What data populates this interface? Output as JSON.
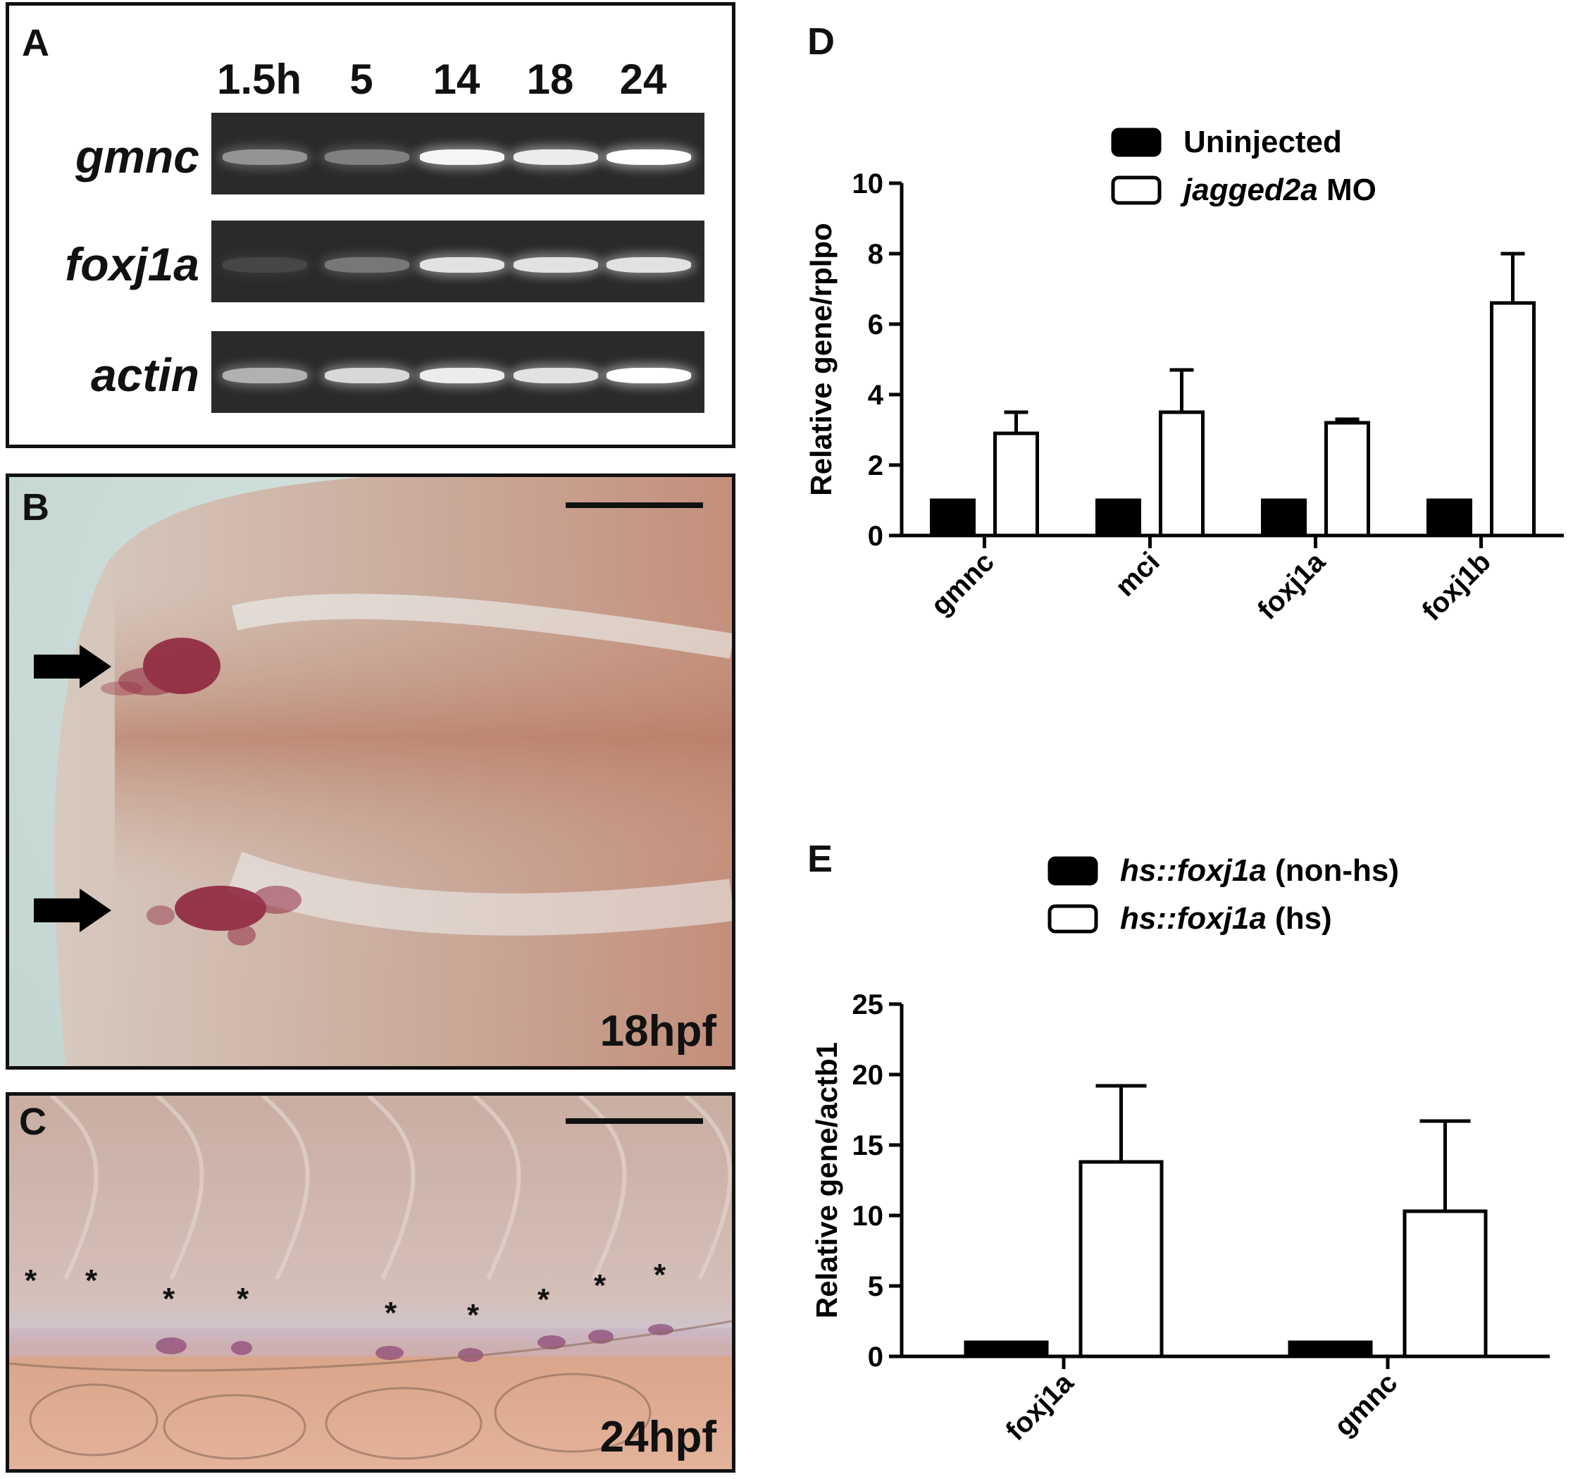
{
  "panel_a": {
    "label": "A",
    "lanes": [
      "1.5h",
      "5",
      "14",
      "18",
      "24"
    ],
    "genes": [
      "gmnc",
      "foxj1a",
      "actin"
    ],
    "band_intensity": [
      [
        0.45,
        0.35,
        0.95,
        0.9,
        1.0
      ],
      [
        0.05,
        0.3,
        0.85,
        0.85,
        0.85
      ],
      [
        0.6,
        0.8,
        0.9,
        0.85,
        1.0
      ]
    ]
  },
  "panel_b": {
    "label": "B",
    "timestamp": "18hpf"
  },
  "panel_c": {
    "label": "C",
    "timestamp": "24hpf",
    "markers": [
      "*",
      "*",
      "*",
      "*",
      "*",
      "*",
      "*",
      "*",
      "*"
    ]
  },
  "panel_d": {
    "label": "D",
    "chart_data": {
      "type": "bar",
      "categories": [
        "gmnc",
        "mci",
        "foxj1a",
        "foxj1b"
      ],
      "series": [
        {
          "name": "Uninjected",
          "values": [
            1,
            1,
            1,
            1
          ],
          "fill": "#000000"
        },
        {
          "name_italic": "jagged2a",
          "name_rest": " MO",
          "values": [
            2.9,
            3.5,
            3.2,
            6.6
          ],
          "errors": [
            0.6,
            1.2,
            0.1,
            1.4
          ],
          "fill": "#ffffff"
        }
      ],
      "ylabel": "Relative gene/rplpo",
      "ylim": [
        0,
        10
      ],
      "yticks": [
        "0",
        "2",
        "4",
        "6",
        "8",
        "10"
      ],
      "legend": "top-right"
    }
  },
  "panel_e": {
    "label": "E",
    "chart_data": {
      "type": "bar",
      "categories": [
        "foxj1a",
        "gmnc"
      ],
      "series": [
        {
          "name_italic": "hs::foxj1a",
          "name_rest": " (non-hs)",
          "values": [
            1,
            1
          ],
          "fill": "#000000"
        },
        {
          "name_italic": "hs::foxj1a",
          "name_rest": " (hs)",
          "values": [
            13.8,
            10.3
          ],
          "errors": [
            5.4,
            6.4
          ],
          "fill": "#ffffff"
        }
      ],
      "ylabel": "Relative gene/actb1",
      "ylim": [
        0,
        25
      ],
      "yticks": [
        "0",
        "5",
        "10",
        "15",
        "20",
        "25"
      ],
      "legend": "top"
    }
  }
}
